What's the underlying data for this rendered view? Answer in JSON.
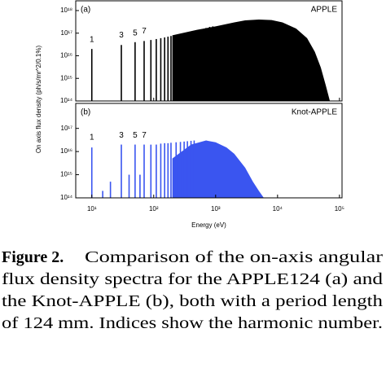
{
  "chart_data": [
    {
      "type": "spectrum",
      "panel_label": "(a)",
      "name": "APPLE",
      "color": "#000000",
      "xlim": [
        5.5,
        110000
      ],
      "ylim": [
        100000000000000.0,
        2.7e+18
      ],
      "log_x": true,
      "log_y": true,
      "yticks": [
        {
          "value": 100000000000000.0,
          "label": "10¹⁴"
        },
        {
          "value": 1000000000000000.0,
          "label": "10¹⁵"
        },
        {
          "value": 1e+16,
          "label": "10¹⁶"
        },
        {
          "value": 1e+17,
          "label": "10¹⁷"
        },
        {
          "value": 1e+18,
          "label": "10¹⁸"
        }
      ],
      "peaks": {
        "x": [
          10,
          30,
          50,
          70,
          90,
          110,
          130,
          150,
          170,
          190,
          230,
          270,
          310,
          350,
          410,
          470,
          530,
          610,
          700,
          800,
          900
        ],
        "values": [
          2e+16,
          3e+16,
          4e+16,
          4.5e+16,
          5e+16,
          5.5e+16,
          6e+16,
          6.5e+16,
          7e+16,
          7.5e+16,
          8e+16,
          9e+16,
          1e+17,
          1.1e+17,
          1.2e+17,
          1.3e+17,
          1.4e+17,
          1.5e+17,
          1.7e+17,
          1.9e+17,
          2e+17
        ]
      },
      "envelope": {
        "x": [
          200,
          500,
          1000,
          2000,
          3000,
          5000,
          8000,
          12000,
          20000,
          30000,
          40000,
          50000,
          60000,
          70000
        ],
        "values": [
          8e+16,
          1.4e+17,
          2e+17,
          3e+17,
          3.7e+17,
          4e+17,
          3.8e+17,
          3e+17,
          1.6e+17,
          6e+16,
          1.5e+16,
          3000000000000000.0,
          500000000000000.0,
          100000000000000.0
        ]
      },
      "harmonic_labels": {
        "text": [
          "1",
          "3",
          "5",
          "7"
        ],
        "x": [
          10,
          30,
          50,
          70
        ],
        "y": [
          5e+16,
          8e+16,
          1e+17,
          1.2e+17
        ]
      }
    },
    {
      "type": "spectrum",
      "panel_label": "(b)",
      "name": "Knot-APPLE",
      "color": "#3a55f0",
      "xlim": [
        5.5,
        110000
      ],
      "ylim": [
        100000000000000.0,
        1.2e+18
      ],
      "log_x": true,
      "log_y": true,
      "xticks": [
        {
          "value": 10,
          "label": "10¹"
        },
        {
          "value": 100,
          "label": "10²"
        },
        {
          "value": 1000,
          "label": "10³"
        },
        {
          "value": 10000,
          "label": "10⁴"
        },
        {
          "value": 100000,
          "label": "10⁵"
        }
      ],
      "xlabel": "Energy (eV)",
      "yticks": [
        {
          "value": 100000000000000.0,
          "label": "10¹⁴"
        },
        {
          "value": 1000000000000000.0,
          "label": "10¹⁵"
        },
        {
          "value": 1e+16,
          "label": "10¹⁶"
        },
        {
          "value": 1e+17,
          "label": "10¹⁷"
        }
      ],
      "peaks": {
        "x": [
          10,
          15,
          20,
          30,
          40,
          50,
          60,
          70,
          90,
          110,
          130,
          150,
          170,
          190,
          230,
          270,
          310,
          350,
          400,
          450
        ],
        "values": [
          1.5e+16,
          200000000000000.0,
          500000000000000.0,
          2e+16,
          1000000000000000.0,
          2e+16,
          1000000000000000.0,
          2e+16,
          2e+16,
          2e+16,
          2.2e+16,
          2.3e+16,
          2.3e+16,
          2.4e+16,
          2.5e+16,
          2.6e+16,
          2.7e+16,
          2.8e+16,
          2.9e+16,
          3e+16
        ]
      },
      "envelope": {
        "x": [
          200,
          400,
          700,
          1000,
          1500,
          2000,
          3000,
          4000,
          5000,
          6000
        ],
        "values": [
          5000000000000000.0,
          2e+16,
          3e+16,
          2.5e+16,
          1.5e+16,
          8000000000000000.0,
          2000000000000000.0,
          500000000000000.0,
          200000000000000.0,
          100000000000000.0
        ]
      },
      "harmonic_labels": {
        "text": [
          "1",
          "3",
          "5",
          "7"
        ],
        "x": [
          10,
          30,
          50,
          70
        ],
        "y": [
          4e+16,
          5e+16,
          5e+16,
          5e+16
        ]
      }
    }
  ],
  "ylabel": "On axis flux density (ph/s/mr^2/0.1%)",
  "caption": {
    "label": "Figure 2.",
    "lines": [
      "Comparison of the on-axis angular",
      "flux density spectra for the APPLE124 (a) and",
      "the Knot-APPLE (b), both with a period length",
      "of 124 mm. Indices show the harmonic number."
    ]
  }
}
